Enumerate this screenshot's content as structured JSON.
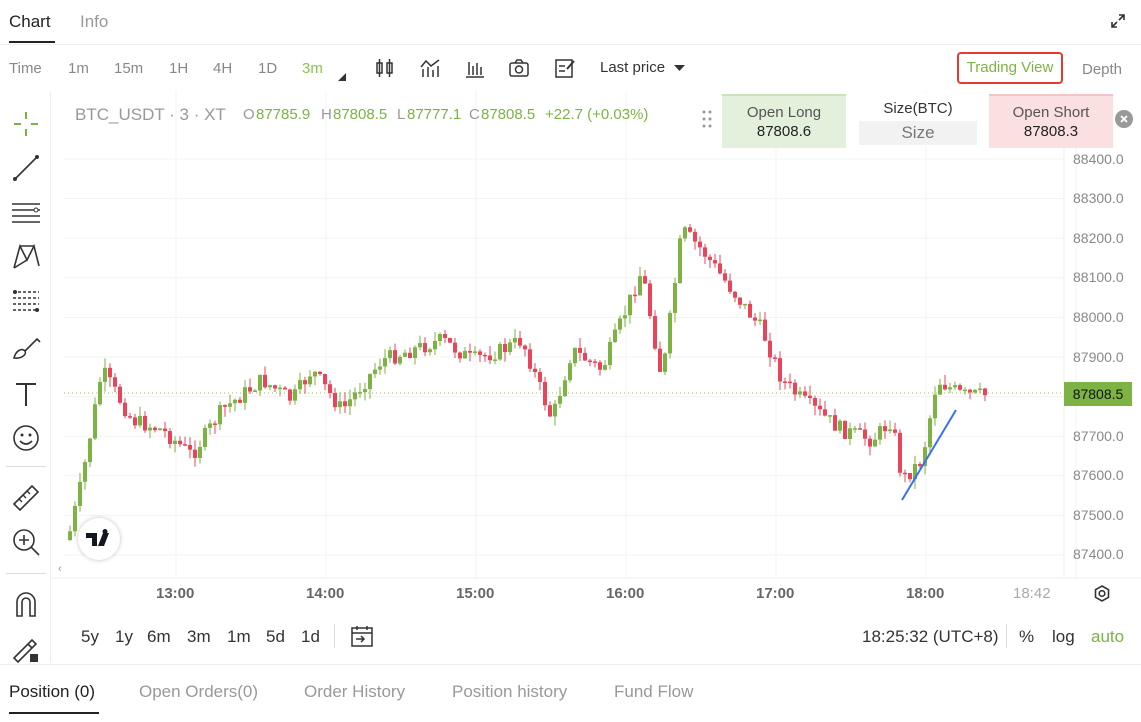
{
  "tabs": {
    "chart": "Chart",
    "info": "Info"
  },
  "icons": {
    "expand": "expand-icon",
    "settings": "gear-icon",
    "close": "close-icon"
  },
  "toolbar": {
    "timeframes": [
      "Time",
      "1m",
      "15m",
      "1H",
      "4H",
      "1D",
      "3m"
    ],
    "active_timeframe": "3m",
    "price_type": "Last price",
    "trading_view": "Trading View",
    "depth": "Depth"
  },
  "legend": {
    "symbol": "BTC_USDT · 3 · XT",
    "o_label": "O",
    "o_value": "87785.9",
    "h_label": "H",
    "h_value": "87808.5",
    "l_label": "L",
    "l_value": "87777.1",
    "c_label": "C",
    "c_value": "87808.5",
    "change": "+22.7 (+0.03%)"
  },
  "order_panel": {
    "open_long": "Open Long",
    "long_price": "87808.6",
    "size_title": "Size(BTC)",
    "size_placeholder": "Size",
    "open_short": "Open Short",
    "short_price": "87808.3"
  },
  "price_axis": [
    "88400.0",
    "88300.0",
    "88200.0",
    "88100.0",
    "88000.0",
    "87900.0",
    "87700.0",
    "87600.0",
    "87500.0",
    "87400.0"
  ],
  "current_price": "87808.5",
  "time_axis": [
    "13:00",
    "14:00",
    "15:00",
    "16:00",
    "17:00",
    "18:00",
    "18:42"
  ],
  "ranges": [
    "5y",
    "1y",
    "6m",
    "3m",
    "1m",
    "5d",
    "1d"
  ],
  "clock": "18:25:32 (UTC+8)",
  "scale": {
    "percent": "%",
    "log": "log",
    "auto": "auto"
  },
  "bottom_tabs": [
    "Position (0)",
    "Open Orders(0)",
    "Order History",
    "Position history",
    "Fund Flow"
  ],
  "colors": {
    "up": "#7cb342",
    "down": "#e8445a",
    "accent": "#7cb342",
    "highlight": "#e53935"
  }
}
